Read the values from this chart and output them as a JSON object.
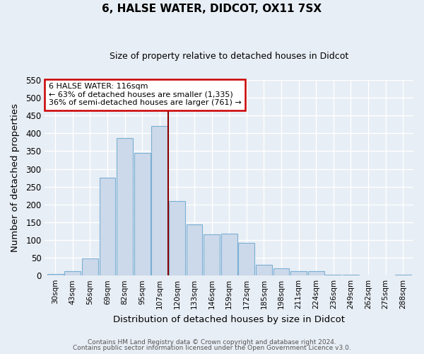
{
  "title": "6, HALSE WATER, DIDCOT, OX11 7SX",
  "subtitle": "Size of property relative to detached houses in Didcot",
  "xlabel": "Distribution of detached houses by size in Didcot",
  "ylabel": "Number of detached properties",
  "bar_labels": [
    "30sqm",
    "43sqm",
    "56sqm",
    "69sqm",
    "82sqm",
    "95sqm",
    "107sqm",
    "120sqm",
    "133sqm",
    "146sqm",
    "159sqm",
    "172sqm",
    "185sqm",
    "198sqm",
    "211sqm",
    "224sqm",
    "236sqm",
    "249sqm",
    "262sqm",
    "275sqm",
    "288sqm"
  ],
  "bar_values": [
    5,
    12,
    48,
    275,
    387,
    345,
    420,
    210,
    143,
    116,
    117,
    91,
    31,
    20,
    12,
    12,
    3,
    3,
    1,
    1,
    2
  ],
  "bar_color": "#ccd9ea",
  "bar_edge_color": "#7aafd4",
  "vline_x_index": 7,
  "vline_color": "#8b0000",
  "annotation_title": "6 HALSE WATER: 116sqm",
  "annotation_line1": "← 63% of detached houses are smaller (1,335)",
  "annotation_line2": "36% of semi-detached houses are larger (761) →",
  "annotation_box_color": "#ffffff",
  "annotation_box_edge_color": "#cc0000",
  "ylim": [
    0,
    550
  ],
  "yticks": [
    0,
    50,
    100,
    150,
    200,
    250,
    300,
    350,
    400,
    450,
    500,
    550
  ],
  "footer1": "Contains HM Land Registry data © Crown copyright and database right 2024.",
  "footer2": "Contains public sector information licensed under the Open Government Licence v3.0.",
  "background_color": "#e8eef5",
  "grid_color": "#ffffff",
  "title_fontsize": 11,
  "subtitle_fontsize": 9
}
